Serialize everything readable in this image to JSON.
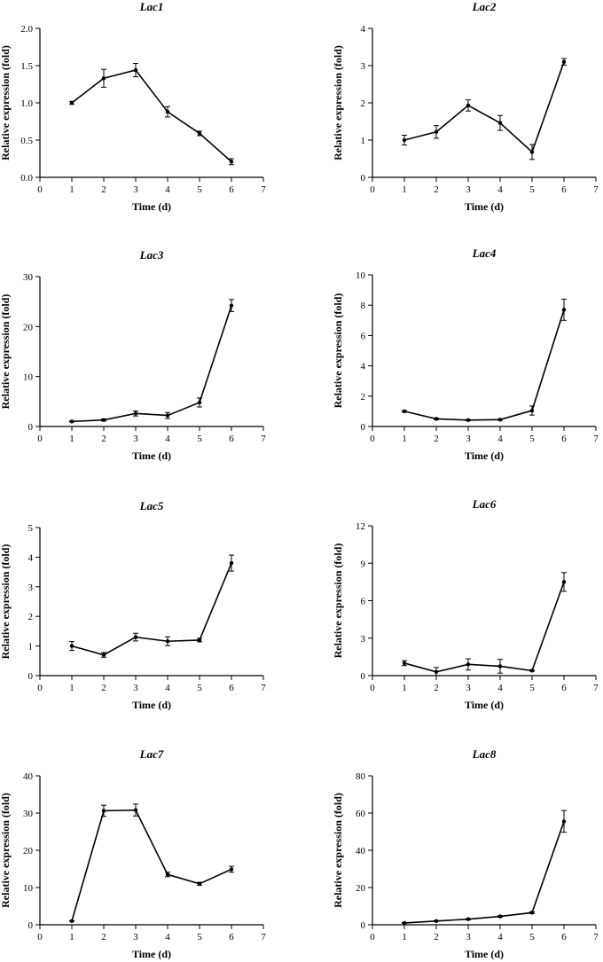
{
  "chart_data": [
    {
      "type": "line",
      "title": "Lac1",
      "title_italic": "Lac",
      "title_num": "1",
      "xlabel": "Time (d)",
      "ylabel": "Relative expression (fold)",
      "xlim": [
        0,
        7
      ],
      "xticks": [
        0,
        1,
        2,
        3,
        4,
        5,
        6,
        7
      ],
      "ylim": [
        0,
        2.0
      ],
      "yticks": [
        "0.0",
        "0.5",
        "1.0",
        "1.5",
        "2.0"
      ],
      "x": [
        1,
        2,
        3,
        4,
        5,
        6
      ],
      "values": [
        1.0,
        1.33,
        1.44,
        0.88,
        0.59,
        0.21
      ],
      "errors": [
        0.02,
        0.12,
        0.09,
        0.07,
        0.03,
        0.04
      ]
    },
    {
      "type": "line",
      "title": "Lac2",
      "title_italic": "Lac",
      "title_num": "2",
      "xlabel": "Time (d)",
      "ylabel": "Relative expression (fold)",
      "xlim": [
        0,
        7
      ],
      "xticks": [
        0,
        1,
        2,
        3,
        4,
        5,
        6,
        7
      ],
      "ylim": [
        0,
        4
      ],
      "yticks": [
        "0",
        "1",
        "2",
        "3",
        "4"
      ],
      "x": [
        1,
        2,
        3,
        4,
        5,
        6
      ],
      "values": [
        1.0,
        1.22,
        1.93,
        1.46,
        0.68,
        3.1
      ],
      "errors": [
        0.13,
        0.17,
        0.15,
        0.2,
        0.2,
        0.09
      ]
    },
    {
      "type": "line",
      "title": "Lac3",
      "title_italic": "Lac",
      "title_num": "3",
      "xlabel": "Time (d)",
      "ylabel": "Relative expression (fold)",
      "xlim": [
        0,
        7
      ],
      "xticks": [
        0,
        1,
        2,
        3,
        4,
        5,
        6,
        7
      ],
      "ylim": [
        0,
        30
      ],
      "yticks": [
        "0",
        "10",
        "20",
        "30"
      ],
      "x": [
        1,
        2,
        3,
        4,
        5,
        6
      ],
      "values": [
        1.0,
        1.3,
        2.6,
        2.2,
        4.8,
        24.2
      ],
      "errors": [
        0.1,
        0.2,
        0.5,
        0.6,
        0.9,
        1.2
      ]
    },
    {
      "type": "line",
      "title": "Lac4",
      "title_italic": "Lac",
      "title_num": "4",
      "xlabel": "Time (d)",
      "ylabel": "Relative expression (fold)",
      "xlim": [
        0,
        7
      ],
      "xticks": [
        0,
        1,
        2,
        3,
        4,
        5,
        6,
        7
      ],
      "ylim": [
        0,
        10
      ],
      "yticks": [
        "0",
        "2",
        "4",
        "6",
        "8",
        "10"
      ],
      "x": [
        1,
        2,
        3,
        4,
        5,
        6
      ],
      "values": [
        1.0,
        0.5,
        0.42,
        0.45,
        1.05,
        7.7
      ],
      "errors": [
        0.05,
        0.05,
        0.04,
        0.04,
        0.3,
        0.7
      ]
    },
    {
      "type": "line",
      "title": "Lac5",
      "title_italic": "Lac",
      "title_num": "5",
      "xlabel": "Time (d)",
      "ylabel": "Relative expression (fold)",
      "xlim": [
        0,
        7
      ],
      "xticks": [
        0,
        1,
        2,
        3,
        4,
        5,
        6,
        7
      ],
      "ylim": [
        0,
        5
      ],
      "yticks": [
        "0",
        "1",
        "2",
        "3",
        "4",
        "5"
      ],
      "x": [
        1,
        2,
        3,
        4,
        5,
        6
      ],
      "values": [
        1.0,
        0.7,
        1.3,
        1.16,
        1.2,
        3.8
      ],
      "errors": [
        0.15,
        0.08,
        0.13,
        0.15,
        0.06,
        0.27
      ]
    },
    {
      "type": "line",
      "title": "Lac6",
      "title_italic": "Lac",
      "title_num": "6",
      "xlabel": "Time (d)",
      "ylabel": "Relative expression (fold)",
      "xlim": [
        0,
        7
      ],
      "xticks": [
        0,
        1,
        2,
        3,
        4,
        5,
        6,
        7
      ],
      "ylim": [
        0,
        12
      ],
      "yticks": [
        "0",
        "3",
        "6",
        "9",
        "12"
      ],
      "x": [
        1,
        2,
        3,
        4,
        5,
        6
      ],
      "values": [
        1.0,
        0.3,
        0.9,
        0.75,
        0.4,
        7.5
      ],
      "errors": [
        0.2,
        0.35,
        0.45,
        0.55,
        0.05,
        0.75
      ]
    },
    {
      "type": "line",
      "title": "Lac7",
      "title_italic": "Lac",
      "title_num": "7",
      "xlabel": "Time (d)",
      "ylabel": "Relative expression (fold)",
      "xlim": [
        0,
        7
      ],
      "xticks": [
        0,
        1,
        2,
        3,
        4,
        5,
        6,
        7
      ],
      "ylim": [
        0,
        40
      ],
      "yticks": [
        "0",
        "10",
        "20",
        "30",
        "40"
      ],
      "x": [
        1,
        2,
        3,
        4,
        5,
        6
      ],
      "values": [
        1.0,
        30.6,
        30.8,
        13.5,
        11.0,
        14.9
      ],
      "errors": [
        0.1,
        1.5,
        1.6,
        0.6,
        0.4,
        0.8
      ]
    },
    {
      "type": "line",
      "title": "Lac8",
      "title_italic": "Lac",
      "title_num": "8",
      "xlabel": "Time (d)",
      "ylabel": "Relative expression (fold)",
      "xlim": [
        0,
        7
      ],
      "xticks": [
        0,
        1,
        2,
        3,
        4,
        5,
        6,
        7
      ],
      "ylim": [
        0,
        80
      ],
      "yticks": [
        "0",
        "20",
        "40",
        "60",
        "80"
      ],
      "x": [
        1,
        2,
        3,
        4,
        5,
        6
      ],
      "values": [
        1.0,
        2.0,
        3.0,
        4.5,
        6.5,
        55.5
      ],
      "errors": [
        0.2,
        0.2,
        0.3,
        0.4,
        0.5,
        5.8
      ]
    }
  ]
}
